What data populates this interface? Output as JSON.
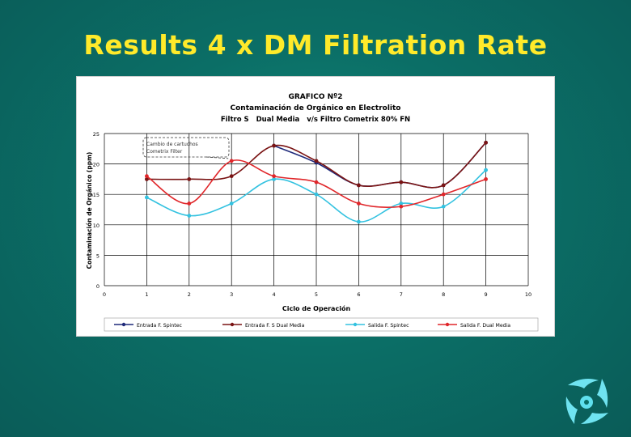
{
  "slide": {
    "title": "Results 4 x DM Filtration Rate"
  },
  "chart_data": {
    "type": "line",
    "title_lines": [
      "GRAFICO Nº2",
      "Contaminación de Orgánico en Electrolito"
    ],
    "subtitle_parts": [
      "Filtro S",
      "Dual Media",
      "v/s Filtro Cometrix 80% FN"
    ],
    "xlabel": "Ciclo de Operación",
    "ylabel": "Contaminación de Orgánico (ppm)",
    "xlim": [
      0,
      10
    ],
    "ylim": [
      0,
      25
    ],
    "xticks": [
      0,
      1,
      2,
      3,
      4,
      5,
      6,
      7,
      8,
      9,
      10
    ],
    "yticks": [
      0,
      5,
      10,
      15,
      20,
      25
    ],
    "grid": true,
    "legend_position": "bottom",
    "annotation": {
      "lines": [
        "Cambio de cartuchos",
        "Cometrix Filter"
      ],
      "points_to": [
        3,
        20.5
      ]
    },
    "series": [
      {
        "name": "Entrada F. Spintec",
        "color": "#1f2a7a",
        "x": [
          4,
          5,
          6,
          7,
          8,
          9
        ],
        "y": [
          23.0,
          20.2,
          16.5,
          17.0,
          16.5,
          23.5
        ]
      },
      {
        "name": "Entrada F. S Dual Media",
        "color": "#7a1414",
        "x": [
          1,
          2,
          3,
          4,
          5,
          6,
          7,
          8,
          9
        ],
        "y": [
          17.5,
          17.5,
          18.0,
          23.0,
          20.5,
          16.5,
          17.0,
          16.5,
          23.5
        ]
      },
      {
        "name": "Salida F. Spintec",
        "color": "#33c2e0",
        "x": [
          1,
          2,
          3,
          4,
          5,
          6,
          7,
          8,
          9
        ],
        "y": [
          14.5,
          11.5,
          13.5,
          17.5,
          15.0,
          10.5,
          13.5,
          13.0,
          19.0
        ]
      },
      {
        "name": "Salida F. Dual Media",
        "color": "#e0262a",
        "x": [
          1,
          2,
          3,
          4,
          5,
          6,
          7,
          8,
          9
        ],
        "y": [
          18.0,
          13.5,
          20.5,
          18.0,
          17.0,
          13.5,
          13.0,
          15.0,
          17.5
        ]
      }
    ]
  },
  "colors": {
    "title": "#ffea2a",
    "background": "#0b6e66"
  },
  "icons": {
    "logo": "swirl-logo-icon"
  }
}
